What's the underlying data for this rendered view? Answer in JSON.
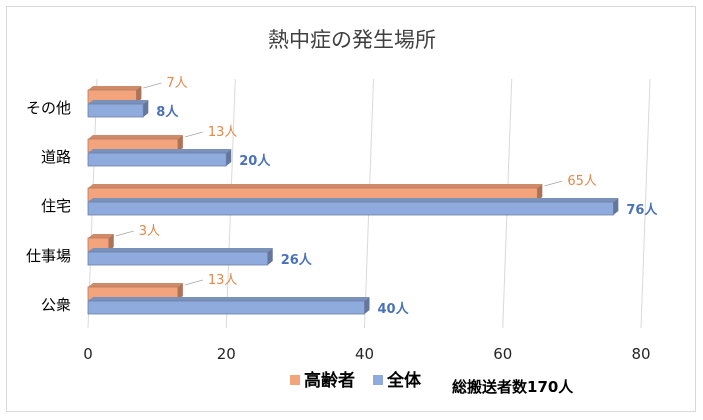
{
  "chart_data": {
    "type": "bar",
    "orientation": "horizontal",
    "title": "熱中症の発生場所",
    "categories": [
      "その他",
      "道路",
      "住宅",
      "仕事場",
      "公衆"
    ],
    "series": [
      {
        "name": "高齢者",
        "values": [
          7,
          13,
          65,
          3,
          13
        ],
        "labels": [
          "7人",
          "13人",
          "65人",
          "3人",
          "13人"
        ],
        "color": "#f4a47c"
      },
      {
        "name": "全体",
        "values": [
          8,
          20,
          76,
          26,
          40
        ],
        "labels": [
          "8人",
          "20人",
          "76人",
          "26人",
          "40人"
        ],
        "color": "#8faadc"
      }
    ],
    "xlim": [
      0,
      80
    ],
    "xticks": [
      "0",
      "20",
      "40",
      "60",
      "80"
    ],
    "grid": true,
    "legend_position": "bottom",
    "annotation": "総搬送者数170人"
  }
}
